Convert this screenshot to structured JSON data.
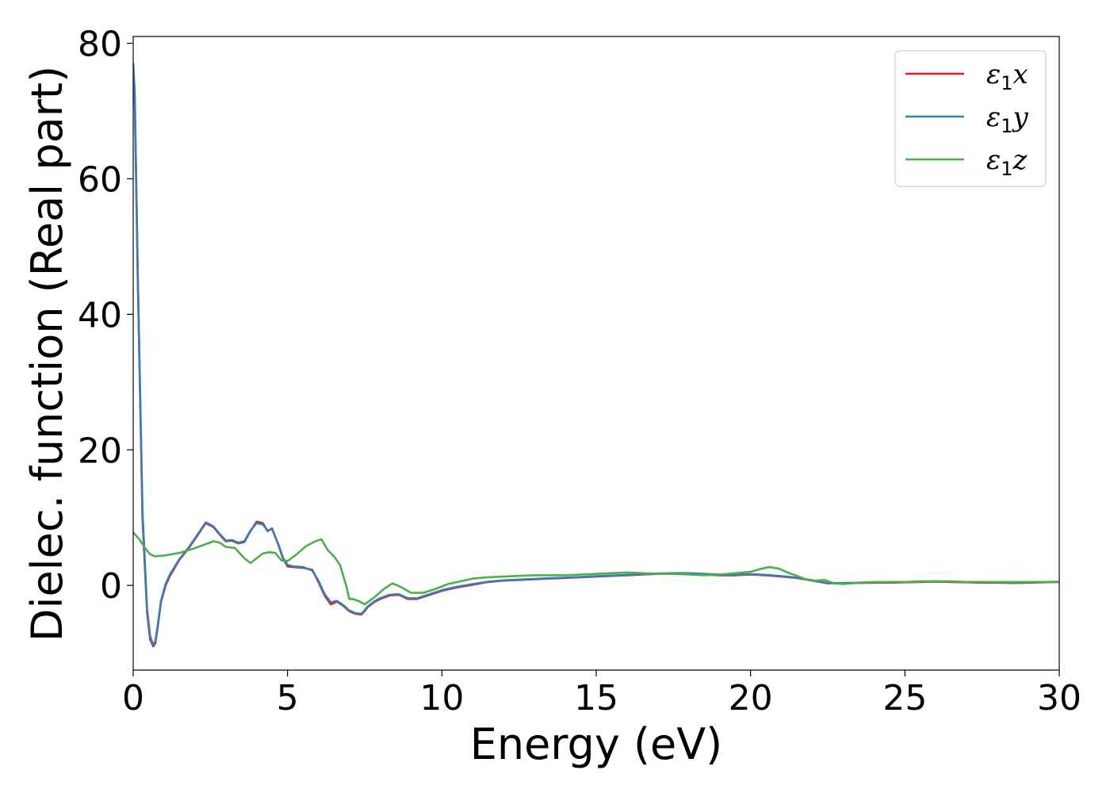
{
  "chart_data": {
    "type": "line",
    "title": "",
    "xlabel": "Energy (eV)",
    "ylabel": "Dielec. function (Real part)",
    "xlim": [
      0,
      30
    ],
    "ylim": [
      -12.5,
      81
    ],
    "xticks": [
      0,
      5,
      10,
      15,
      20,
      25,
      30
    ],
    "yticks": [
      0,
      20,
      40,
      60,
      80
    ],
    "grid": false,
    "legend_position": "top-right",
    "series": [
      {
        "name": "ε1x",
        "color": "#e41a1c",
        "x": [
          0,
          0.05,
          0.15,
          0.3,
          0.45,
          0.55,
          0.65,
          0.72,
          0.8,
          0.9,
          1.05,
          1.2,
          1.5,
          1.8,
          2.1,
          2.35,
          2.6,
          2.8,
          3.0,
          3.2,
          3.4,
          3.6,
          3.8,
          4.0,
          4.2,
          4.35,
          4.5,
          4.7,
          4.85,
          5.0,
          5.2,
          5.5,
          5.8,
          6.0,
          6.2,
          6.4,
          6.6,
          6.8,
          7.0,
          7.2,
          7.4,
          7.6,
          7.8,
          8.0,
          8.3,
          8.6,
          8.9,
          9.2,
          9.6,
          10,
          10.5,
          11,
          11.5,
          12,
          12.5,
          13,
          13.5,
          14,
          14.5,
          15,
          15.5,
          16,
          16.5,
          17,
          17.5,
          18,
          18.5,
          19,
          19.5,
          20,
          20.5,
          21,
          21.5,
          22,
          22.5,
          23,
          23.5,
          24,
          24.5,
          25,
          25.5,
          26,
          26.5,
          27,
          27.5,
          28,
          28.5,
          29,
          29.5,
          30
        ],
        "y": [
          76.5,
          72,
          45,
          10,
          -4,
          -8,
          -9,
          -8.5,
          -6,
          -2.5,
          0,
          1.5,
          3.8,
          5.5,
          7.5,
          9.2,
          8.6,
          7.5,
          6.5,
          6.6,
          6.2,
          6.4,
          8.0,
          9.4,
          9.2,
          8.0,
          8.4,
          6.0,
          4.0,
          2.8,
          2.7,
          2.6,
          2.3,
          0.5,
          -1.5,
          -2.8,
          -2.4,
          -3.0,
          -3.8,
          -4.2,
          -4.3,
          -3.2,
          -2.5,
          -2.0,
          -1.5,
          -1.4,
          -2.0,
          -2.0,
          -1.4,
          -0.8,
          -0.3,
          0.1,
          0.5,
          0.7,
          0.8,
          0.9,
          1.0,
          1.1,
          1.2,
          1.3,
          1.4,
          1.5,
          1.6,
          1.7,
          1.7,
          1.7,
          1.6,
          1.5,
          1.5,
          1.6,
          1.5,
          1.3,
          1.1,
          0.7,
          0.3,
          0.3,
          0.35,
          0.4,
          0.4,
          0.45,
          0.5,
          0.55,
          0.5,
          0.45,
          0.4,
          0.4,
          0.35,
          0.4,
          0.45,
          0.5
        ]
      },
      {
        "name": "ε1y",
        "color": "#377eb8",
        "x": [
          0,
          0.05,
          0.15,
          0.3,
          0.45,
          0.55,
          0.65,
          0.72,
          0.8,
          0.9,
          1.05,
          1.2,
          1.5,
          1.8,
          2.1,
          2.35,
          2.6,
          2.8,
          3.0,
          3.2,
          3.4,
          3.6,
          3.8,
          4.0,
          4.2,
          4.35,
          4.5,
          4.7,
          4.85,
          5.0,
          5.2,
          5.5,
          5.8,
          6.0,
          6.2,
          6.4,
          6.6,
          6.8,
          7.0,
          7.2,
          7.4,
          7.6,
          7.8,
          8.0,
          8.3,
          8.6,
          8.9,
          9.2,
          9.6,
          10,
          10.5,
          11,
          11.5,
          12,
          12.5,
          13,
          13.5,
          14,
          14.5,
          15,
          15.5,
          16,
          16.5,
          17,
          17.5,
          18,
          18.5,
          19,
          19.5,
          20,
          20.5,
          21,
          21.5,
          22,
          22.5,
          23,
          23.5,
          24,
          24.5,
          25,
          25.5,
          26,
          26.5,
          27,
          27.5,
          28,
          28.5,
          29,
          29.5,
          30
        ],
        "y": [
          77,
          73,
          46,
          11,
          -3.5,
          -7.5,
          -8.8,
          -8.2,
          -5.8,
          -2.3,
          0.2,
          1.7,
          3.9,
          5.6,
          7.6,
          9.3,
          8.7,
          7.6,
          6.6,
          6.7,
          6.3,
          6.5,
          8.1,
          9.2,
          9.0,
          8.1,
          8.3,
          6.1,
          4.1,
          3.0,
          2.8,
          2.7,
          2.2,
          0.7,
          -1.3,
          -2.5,
          -2.3,
          -2.9,
          -3.7,
          -4.1,
          -4.2,
          -3.1,
          -2.4,
          -1.9,
          -1.4,
          -1.3,
          -1.9,
          -1.9,
          -1.3,
          -0.7,
          -0.2,
          0.2,
          0.55,
          0.75,
          0.85,
          0.95,
          1.05,
          1.15,
          1.25,
          1.35,
          1.45,
          1.55,
          1.65,
          1.75,
          1.8,
          1.8,
          1.7,
          1.6,
          1.55,
          1.65,
          1.55,
          1.35,
          1.15,
          0.75,
          0.35,
          0.35,
          0.4,
          0.45,
          0.45,
          0.5,
          0.55,
          0.6,
          0.55,
          0.5,
          0.45,
          0.45,
          0.4,
          0.45,
          0.5,
          0.55
        ]
      },
      {
        "name": "ε1z",
        "color": "#4daf4a",
        "x": [
          0,
          0.2,
          0.4,
          0.55,
          0.7,
          1.0,
          1.5,
          2.0,
          2.3,
          2.6,
          2.8,
          3.0,
          3.3,
          3.6,
          3.8,
          4.0,
          4.2,
          4.4,
          4.6,
          4.8,
          5.0,
          5.3,
          5.6,
          5.9,
          6.1,
          6.3,
          6.5,
          6.7,
          6.9,
          7.0,
          7.1,
          7.3,
          7.5,
          7.8,
          8.1,
          8.4,
          8.7,
          9.0,
          9.4,
          9.8,
          10.2,
          10.6,
          11,
          11.5,
          12,
          12.5,
          13,
          13.5,
          14,
          14.5,
          15,
          15.5,
          16,
          16.5,
          17,
          17.5,
          18,
          18.5,
          19,
          19.5,
          20,
          20.3,
          20.6,
          20.9,
          21.2,
          21.5,
          21.8,
          22.1,
          22.4,
          22.7,
          23,
          23.5,
          24,
          24.5,
          25,
          25.5,
          26,
          26.5,
          27,
          27.5,
          28,
          28.5,
          29,
          29.5,
          30
        ],
        "y": [
          7.8,
          6.8,
          5.4,
          4.6,
          4.3,
          4.4,
          4.8,
          5.5,
          6.0,
          6.5,
          6.3,
          5.7,
          5.5,
          4.0,
          3.3,
          4.0,
          4.7,
          4.9,
          4.8,
          3.7,
          3.6,
          4.6,
          5.8,
          6.5,
          6.8,
          5.2,
          4.3,
          3.0,
          0.0,
          -2.0,
          -2.0,
          -2.3,
          -2.8,
          -1.8,
          -0.6,
          0.3,
          -0.3,
          -1.1,
          -1.1,
          -0.5,
          0.2,
          0.6,
          1.0,
          1.2,
          1.3,
          1.4,
          1.5,
          1.5,
          1.5,
          1.6,
          1.7,
          1.8,
          1.9,
          1.8,
          1.7,
          1.7,
          1.6,
          1.5,
          1.6,
          1.8,
          2.0,
          2.4,
          2.7,
          2.5,
          1.9,
          1.4,
          0.9,
          0.7,
          0.8,
          0.3,
          0.2,
          0.4,
          0.5,
          0.5,
          0.5,
          0.6,
          0.6,
          0.6,
          0.5,
          0.5,
          0.5,
          0.5,
          0.5,
          0.5,
          0.5
        ]
      }
    ]
  }
}
